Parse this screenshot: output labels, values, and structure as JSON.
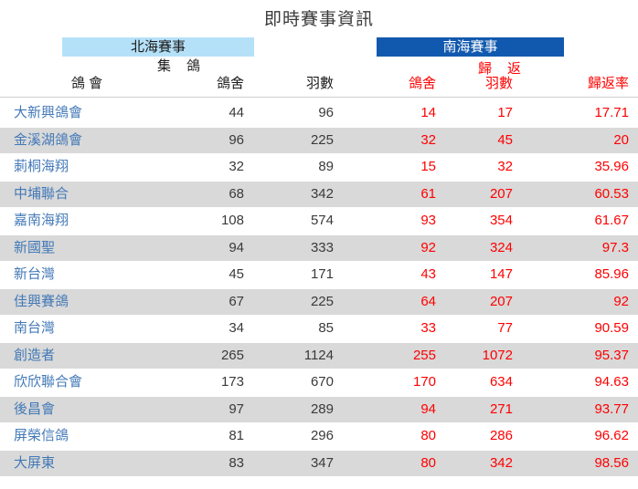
{
  "title": "即時賽事資訊",
  "colors": {
    "north_banner_bg": "#b5e1f8",
    "south_banner_bg": "#1159ae",
    "link_blue": "#4379b7",
    "accent_red": "#ff0000",
    "alt_row_bg": "#d9d9d9",
    "text_dark": "#3a3a3a"
  },
  "groups": {
    "north": {
      "label": "北海賽事",
      "sub_label": "集　鴿"
    },
    "south": {
      "label": "南海賽事",
      "sub_label": "歸　返"
    }
  },
  "columns": {
    "association": "鴿 會",
    "north_lofts": "鴿舍",
    "north_birds": "羽數",
    "south_lofts": "鴿舍",
    "south_birds": "羽數",
    "return_rate": "歸返率"
  },
  "table": {
    "rows": [
      {
        "name": "大新興鴿會",
        "north_lofts": 44,
        "north_birds": 96,
        "south_lofts": 14,
        "south_birds": 17,
        "return_rate": "17.71"
      },
      {
        "name": "金溪湖鴿會",
        "north_lofts": 96,
        "north_birds": 225,
        "south_lofts": 32,
        "south_birds": 45,
        "return_rate": "20"
      },
      {
        "name": "莿桐海翔",
        "north_lofts": 32,
        "north_birds": 89,
        "south_lofts": 15,
        "south_birds": 32,
        "return_rate": "35.96"
      },
      {
        "name": "中埔聯合",
        "north_lofts": 68,
        "north_birds": 342,
        "south_lofts": 61,
        "south_birds": 207,
        "return_rate": "60.53"
      },
      {
        "name": "嘉南海翔",
        "north_lofts": 108,
        "north_birds": 574,
        "south_lofts": 93,
        "south_birds": 354,
        "return_rate": "61.67"
      },
      {
        "name": "新國聖",
        "north_lofts": 94,
        "north_birds": 333,
        "south_lofts": 92,
        "south_birds": 324,
        "return_rate": "97.3"
      },
      {
        "name": "新台灣",
        "north_lofts": 45,
        "north_birds": 171,
        "south_lofts": 43,
        "south_birds": 147,
        "return_rate": "85.96"
      },
      {
        "name": "佳興賽鴿",
        "north_lofts": 67,
        "north_birds": 225,
        "south_lofts": 64,
        "south_birds": 207,
        "return_rate": "92"
      },
      {
        "name": "南台灣",
        "north_lofts": 34,
        "north_birds": 85,
        "south_lofts": 33,
        "south_birds": 77,
        "return_rate": "90.59"
      },
      {
        "name": "創造者",
        "north_lofts": 265,
        "north_birds": 1124,
        "south_lofts": 255,
        "south_birds": 1072,
        "return_rate": "95.37"
      },
      {
        "name": "欣欣聯合會",
        "north_lofts": 173,
        "north_birds": 670,
        "south_lofts": 170,
        "south_birds": 634,
        "return_rate": "94.63"
      },
      {
        "name": "後昌會",
        "north_lofts": 97,
        "north_birds": 289,
        "south_lofts": 94,
        "south_birds": 271,
        "return_rate": "93.77"
      },
      {
        "name": "屏榮信鴿",
        "north_lofts": 81,
        "north_birds": 296,
        "south_lofts": 80,
        "south_birds": 286,
        "return_rate": "96.62"
      },
      {
        "name": "大屏東",
        "north_lofts": 83,
        "north_birds": 347,
        "south_lofts": 80,
        "south_birds": 342,
        "return_rate": "98.56"
      }
    ]
  }
}
